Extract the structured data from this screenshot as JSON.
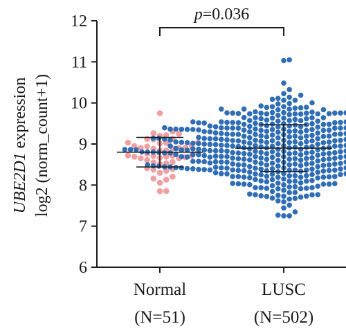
{
  "colors": {
    "normal": "#f0a0a2",
    "lusc": "#2f6db5",
    "axis": "#1a1a1a"
  },
  "chart_data": {
    "type": "scatter",
    "subtype": "beeswarm",
    "title": "",
    "ylabel_italic": "UBE2D1",
    "ylabel_line1_rest": " expression",
    "ylabel_line2": "log2 (norm_count+1)",
    "ylim": [
      6,
      12
    ],
    "yticks": [
      6,
      7,
      8,
      9,
      10,
      11,
      12
    ],
    "grid": false,
    "groups": [
      {
        "name": "Normal",
        "n_label": "(N=51)",
        "n": 51,
        "mean": 8.8,
        "sd": 0.36,
        "min": 7.85,
        "max": 9.75,
        "color": "#f0a0a2"
      },
      {
        "name": "LUSC",
        "n_label": "(N=502)",
        "n": 502,
        "mean": 8.9,
        "sd": 0.57,
        "min": 7.25,
        "max": 11.05,
        "color": "#2f6db5"
      }
    ],
    "comparison": {
      "p_symbol": "p",
      "p_value": "=0.036"
    }
  }
}
